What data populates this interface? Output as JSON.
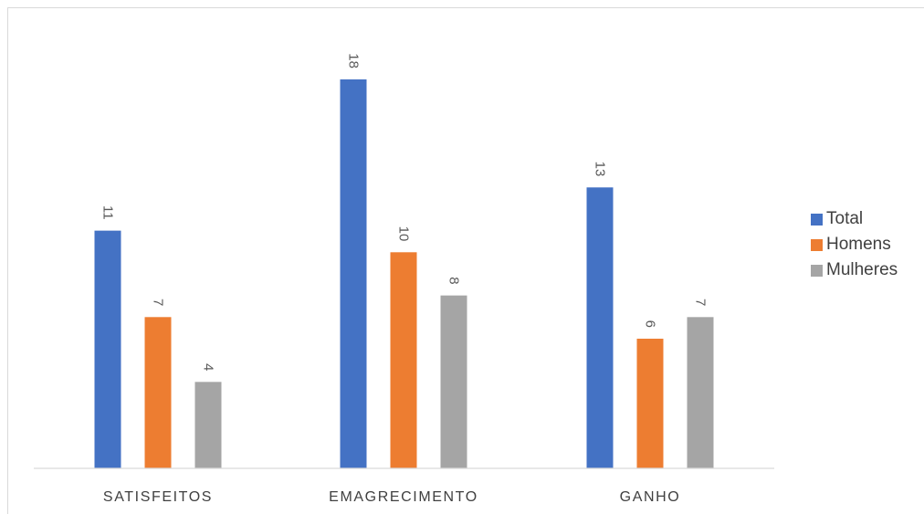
{
  "chart_data": {
    "type": "bar",
    "title": "",
    "xlabel": "",
    "ylabel": "",
    "ylim": [
      0,
      18
    ],
    "grid": false,
    "legend_position": "right",
    "categories": [
      "SATISFEITOS",
      "EMAGRECIMENTO",
      "GANHO"
    ],
    "series": [
      {
        "name": "Total",
        "color": "#4472c4",
        "values": [
          11,
          18,
          13
        ]
      },
      {
        "name": "Homens",
        "color": "#ed7d31",
        "values": [
          7,
          10,
          6
        ]
      },
      {
        "name": "Mulheres",
        "color": "#a5a5a5",
        "values": [
          4,
          8,
          7
        ]
      }
    ]
  }
}
